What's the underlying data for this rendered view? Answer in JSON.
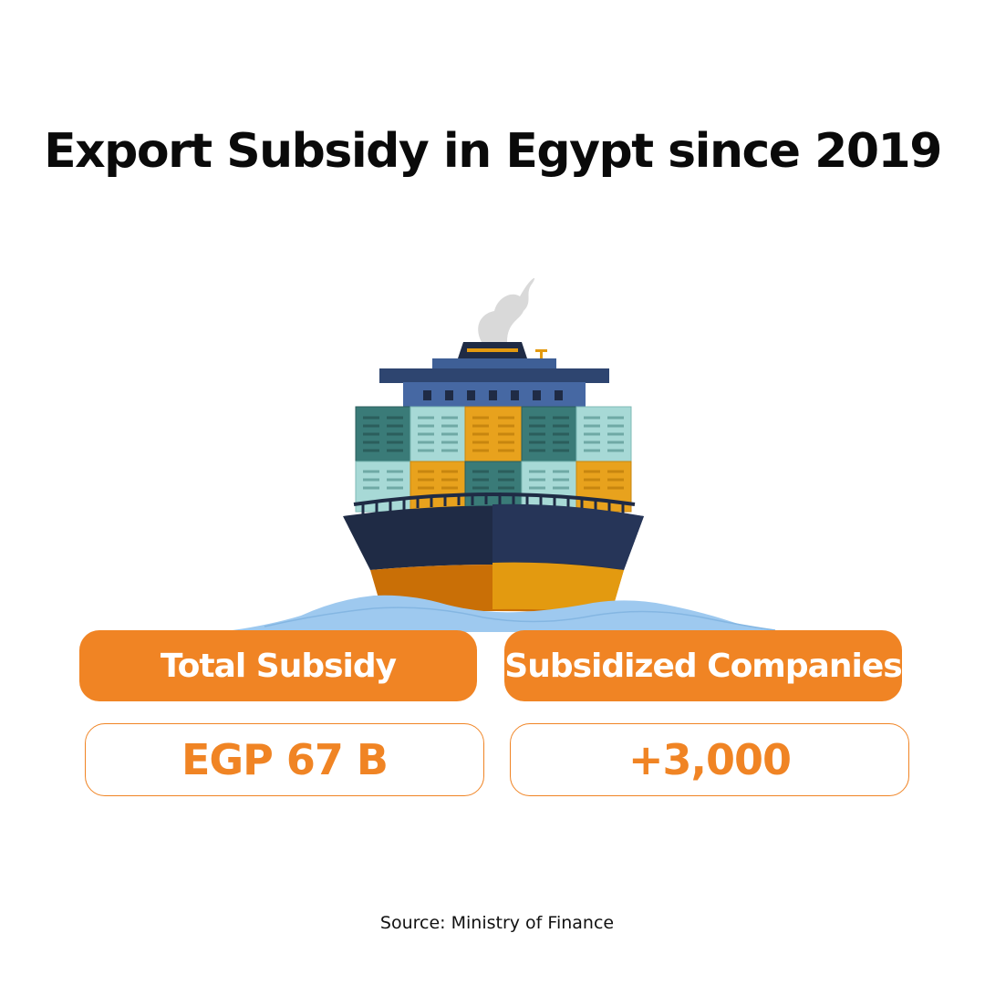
{
  "title": "Export Subsidy in Egypt since 2019",
  "illustration": {
    "icon": "cargo-ship-icon",
    "colors": {
      "hull": "#1f2b45",
      "hull_bottom": "#e39a10",
      "bridge": "#3e5f96",
      "teal_container": "#3a7b78",
      "light_container": "#a7d9d6",
      "orange_container": "#e8a21d",
      "water": "#9ec9ef",
      "smoke": "#d9d9d9"
    }
  },
  "stats": [
    {
      "label": "Total Subsidy",
      "value": "EGP 67 B"
    },
    {
      "label": "Subsidized Companies",
      "value": "+3,000"
    }
  ],
  "accent_color": "#f08424",
  "source": "Source: Ministry of Finance"
}
